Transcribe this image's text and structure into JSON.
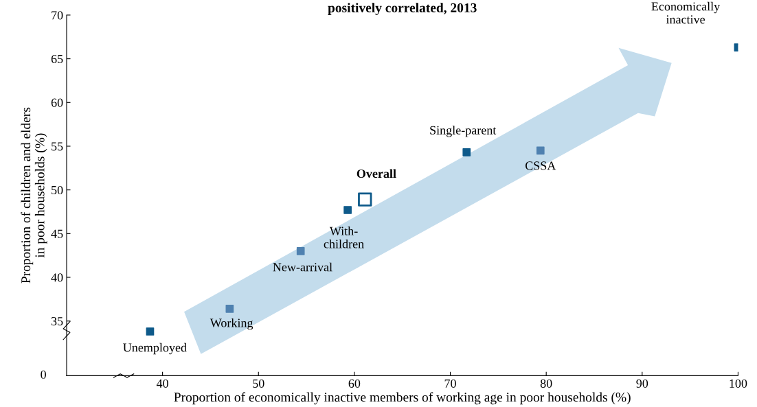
{
  "chart_data": {
    "type": "scatter",
    "title": "positively correlated, 2013",
    "xlabel": "Proportion of economically inactive members of working age in poor households (%)",
    "ylabel": "Proportion of children and elders\nin poor households (%)",
    "xlim": [
      30,
      100
    ],
    "xticks": [
      40,
      50,
      60,
      70,
      80,
      90,
      100
    ],
    "ylim": [
      28.75,
      70
    ],
    "yticks": [
      35,
      40,
      45,
      50,
      55,
      60,
      65,
      70
    ],
    "grid": false,
    "legend": false,
    "marker": "square",
    "series": [
      {
        "type": "scatter",
        "x": [
          38.7,
          47.0,
          54.4,
          59.3,
          71.7,
          79.4,
          100
        ],
        "values": [
          33.8,
          36.4,
          43.0,
          47.7,
          54.3,
          54.5,
          66.3
        ],
        "colors": [
          "#0e5a8a",
          "#4f81b0",
          "#4f81b0",
          "#0e5a8a",
          "#0e5a8a",
          "#4f81b0",
          "#0e5a8a"
        ]
      },
      {
        "type": "scatter",
        "x": [
          61.1
        ],
        "values": [
          48.9
        ],
        "color": "#0e5a8a"
      }
    ],
    "annotations": [
      {
        "text": "Unemployed",
        "x": 38.7,
        "y": 33.8
      },
      {
        "text": "Working",
        "x": 47.0,
        "y": 36.4
      },
      {
        "text": "New-arrival",
        "x": 54.4,
        "y": 43.0
      },
      {
        "text": "With-\nchildren",
        "x": 59.3,
        "y": 47.7
      },
      {
        "text": "Overall",
        "x": 61.1,
        "y": 48.9
      },
      {
        "text": "Single-parent",
        "x": 71.7,
        "y": 54.3
      },
      {
        "text": "CSSA",
        "x": 79.4,
        "y": 54.5
      },
      {
        "text": "Economically\ninactive",
        "x": 100,
        "y": 66.3
      },
      "0"
    ]
  }
}
